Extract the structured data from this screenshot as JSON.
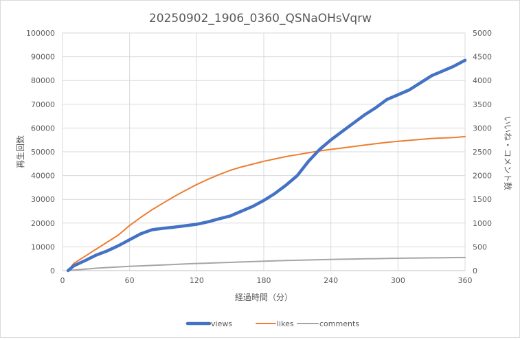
{
  "chart_data": {
    "type": "line",
    "title": "20250902_1906_0360_QSNaOHsVqrw",
    "xlabel": "経過時間（分）",
    "ylabel": "再生回数",
    "y2label": "いいね・コメント数",
    "xlim": [
      0,
      360
    ],
    "xticks": [
      0,
      60,
      120,
      180,
      240,
      300,
      360
    ],
    "ylim": [
      0,
      100000
    ],
    "yticks": [
      0,
      10000,
      20000,
      30000,
      40000,
      50000,
      60000,
      70000,
      80000,
      90000,
      100000
    ],
    "y2lim": [
      0,
      5000
    ],
    "y2ticks": [
      0,
      500,
      1000,
      1500,
      2000,
      2500,
      3000,
      3500,
      4000,
      4500,
      5000
    ],
    "grid": true,
    "legend": "bottom",
    "series": [
      {
        "name": "views",
        "axis": "left",
        "color": "#4472c4",
        "points": [
          [
            5,
            0
          ],
          [
            10,
            2000
          ],
          [
            20,
            4200
          ],
          [
            30,
            6500
          ],
          [
            40,
            8300
          ],
          [
            50,
            10500
          ],
          [
            60,
            13000
          ],
          [
            70,
            15500
          ],
          [
            80,
            17200
          ],
          [
            90,
            17800
          ],
          [
            100,
            18300
          ],
          [
            110,
            18900
          ],
          [
            120,
            19500
          ],
          [
            130,
            20500
          ],
          [
            140,
            21800
          ],
          [
            150,
            23000
          ],
          [
            160,
            25000
          ],
          [
            170,
            27000
          ],
          [
            180,
            29500
          ],
          [
            190,
            32500
          ],
          [
            200,
            36000
          ],
          [
            210,
            40000
          ],
          [
            220,
            46000
          ],
          [
            230,
            51000
          ],
          [
            240,
            55000
          ],
          [
            250,
            58500
          ],
          [
            260,
            62000
          ],
          [
            270,
            65500
          ],
          [
            280,
            68500
          ],
          [
            290,
            72000
          ],
          [
            300,
            74000
          ],
          [
            310,
            76000
          ],
          [
            320,
            79000
          ],
          [
            330,
            82000
          ],
          [
            340,
            84000
          ],
          [
            350,
            86000
          ],
          [
            360,
            88500
          ]
        ]
      },
      {
        "name": "likes",
        "axis": "right",
        "color": "#ed7d31",
        "points": [
          [
            5,
            0
          ],
          [
            10,
            150
          ],
          [
            20,
            300
          ],
          [
            30,
            450
          ],
          [
            40,
            600
          ],
          [
            50,
            750
          ],
          [
            60,
            950
          ],
          [
            70,
            1120
          ],
          [
            80,
            1280
          ],
          [
            90,
            1420
          ],
          [
            100,
            1560
          ],
          [
            110,
            1690
          ],
          [
            120,
            1810
          ],
          [
            130,
            1920
          ],
          [
            140,
            2020
          ],
          [
            150,
            2110
          ],
          [
            160,
            2180
          ],
          [
            170,
            2240
          ],
          [
            180,
            2300
          ],
          [
            190,
            2350
          ],
          [
            200,
            2400
          ],
          [
            210,
            2440
          ],
          [
            220,
            2480
          ],
          [
            230,
            2520
          ],
          [
            240,
            2550
          ],
          [
            250,
            2580
          ],
          [
            260,
            2610
          ],
          [
            270,
            2640
          ],
          [
            280,
            2670
          ],
          [
            290,
            2700
          ],
          [
            300,
            2720
          ],
          [
            310,
            2740
          ],
          [
            320,
            2760
          ],
          [
            330,
            2780
          ],
          [
            340,
            2790
          ],
          [
            350,
            2800
          ],
          [
            360,
            2820
          ]
        ]
      },
      {
        "name": "comments",
        "axis": "right",
        "color": "#a5a5a5",
        "points": [
          [
            5,
            0
          ],
          [
            10,
            10
          ],
          [
            20,
            30
          ],
          [
            30,
            50
          ],
          [
            40,
            65
          ],
          [
            50,
            78
          ],
          [
            60,
            90
          ],
          [
            70,
            100
          ],
          [
            80,
            110
          ],
          [
            90,
            120
          ],
          [
            100,
            130
          ],
          [
            110,
            140
          ],
          [
            120,
            150
          ],
          [
            130,
            158
          ],
          [
            140,
            166
          ],
          [
            150,
            174
          ],
          [
            160,
            182
          ],
          [
            170,
            190
          ],
          [
            180,
            198
          ],
          [
            190,
            205
          ],
          [
            200,
            212
          ],
          [
            210,
            218
          ],
          [
            220,
            224
          ],
          [
            230,
            230
          ],
          [
            240,
            236
          ],
          [
            250,
            240
          ],
          [
            260,
            244
          ],
          [
            270,
            248
          ],
          [
            280,
            252
          ],
          [
            290,
            256
          ],
          [
            300,
            260
          ],
          [
            310,
            263
          ],
          [
            320,
            266
          ],
          [
            330,
            269
          ],
          [
            340,
            272
          ],
          [
            350,
            274
          ],
          [
            360,
            276
          ]
        ]
      }
    ]
  }
}
